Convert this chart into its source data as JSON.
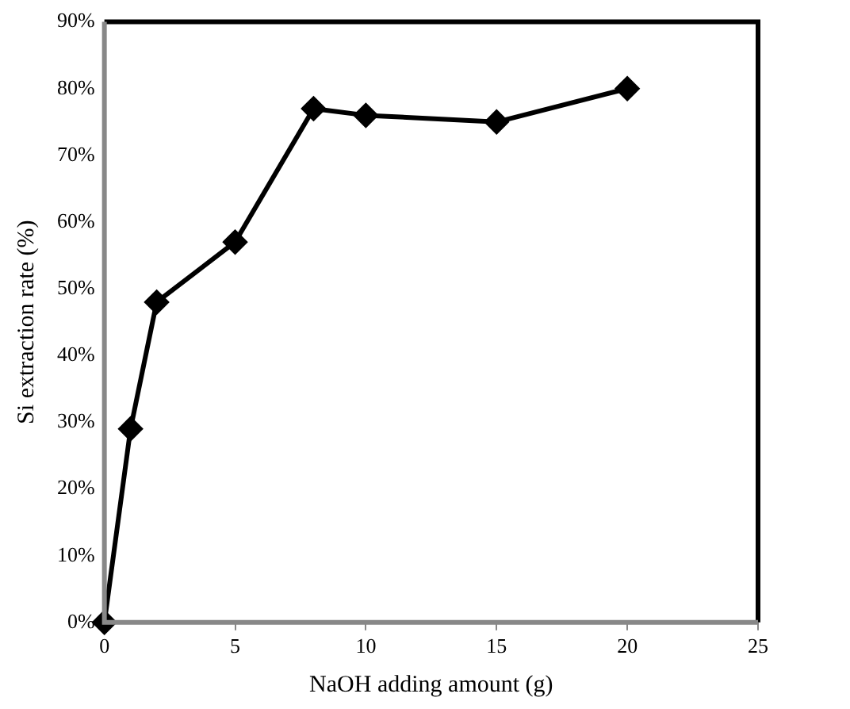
{
  "chart_data": {
    "type": "line",
    "xlabel": "NaOH adding amount (g)",
    "ylabel": "Si extraction rate (%)",
    "x": [
      0,
      1,
      2,
      5,
      8,
      10,
      15,
      20
    ],
    "series": [
      {
        "color": "#000000",
        "values": [
          0,
          29,
          48,
          57,
          77,
          76,
          75,
          80
        ]
      }
    ],
    "xlim": [
      0,
      25
    ],
    "xticks": [
      0,
      5,
      10,
      15,
      20,
      25
    ],
    "ylim": [
      0,
      90
    ],
    "yticks": [
      {
        "value": 0,
        "label": "0%"
      },
      {
        "value": 10,
        "label": "10%"
      },
      {
        "value": 20,
        "label": "20%"
      },
      {
        "value": 30,
        "label": "30%"
      },
      {
        "value": 40,
        "label": "40%"
      },
      {
        "value": 50,
        "label": "50%"
      },
      {
        "value": 60,
        "label": "60%"
      },
      {
        "value": 70,
        "label": "70%"
      },
      {
        "value": 80,
        "label": "80%"
      },
      {
        "value": 90,
        "label": "90%"
      }
    ],
    "grid": false,
    "legend": false,
    "marker": "diamond",
    "line_style": "solid"
  }
}
